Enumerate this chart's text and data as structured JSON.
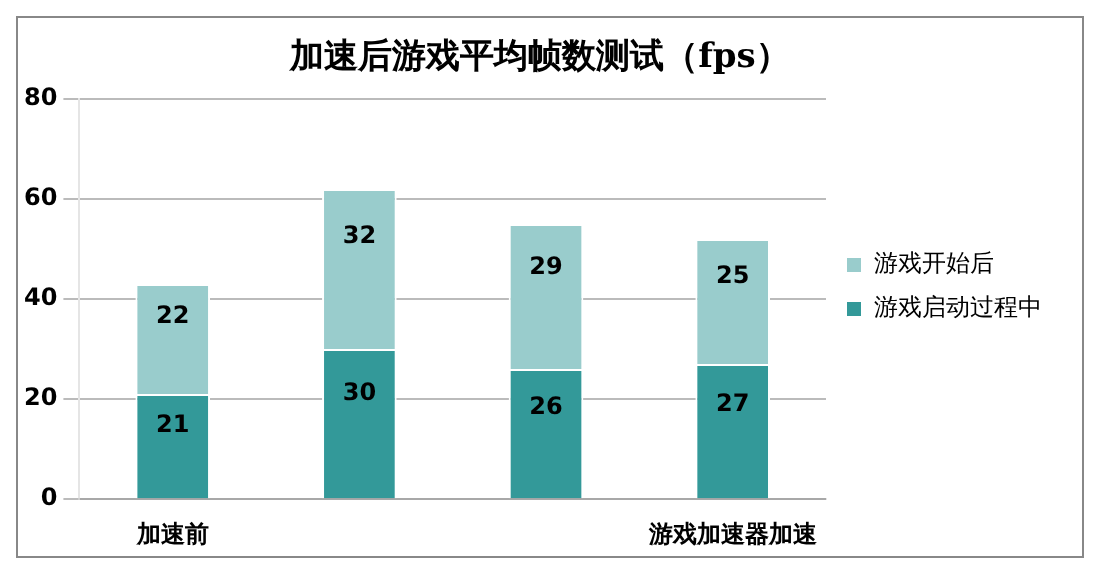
{
  "chart_data": {
    "type": "bar",
    "title": "加速后游戏平均帧数测试（fps）",
    "categories": [
      "加速前",
      null,
      null,
      "游戏加速器加速"
    ],
    "stacked": true,
    "series": [
      {
        "name": "游戏启动过程中",
        "color": "#339999",
        "values": [
          21,
          30,
          26,
          27
        ]
      },
      {
        "name": "游戏开始后",
        "color": "#99cccc",
        "values": [
          22,
          32,
          29,
          25
        ]
      }
    ],
    "ylim": [
      0,
      80
    ],
    "yticks": [
      0,
      20,
      40,
      60,
      80
    ],
    "grid": "y",
    "legend": "right",
    "data_labels": true
  }
}
